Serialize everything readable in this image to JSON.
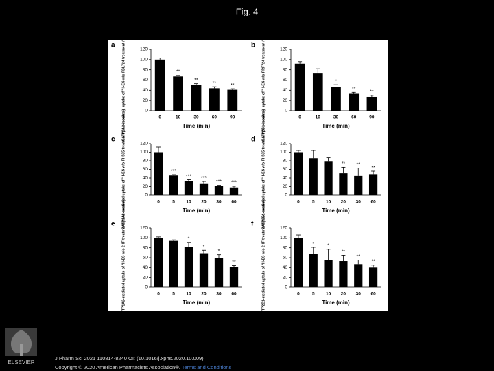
{
  "header": {
    "title": "Fig. 4"
  },
  "footer": {
    "publisher": "ELSEVIER",
    "citation": "J Pharm Sci 2021 110814-8240 OI: (10.1016/j.xphs.2020.10.009)",
    "copyright": "Copyright © 2020 American Pharmacists Association®.",
    "link": "Terms and Conditions"
  },
  "chart_data": [
    {
      "type": "bar",
      "label": "a",
      "ylabel": "OATP1A2-mediated uptake of ³H-ES w/o FBL724 treatment (% of control)",
      "xlabel": "Time (min)",
      "categories": [
        "0",
        "10",
        "30",
        "60",
        "90"
      ],
      "values": [
        100,
        67,
        50,
        44,
        41
      ],
      "errors": [
        3,
        2,
        3,
        3,
        2
      ],
      "sig": [
        null,
        "**",
        "**",
        "**",
        "**"
      ],
      "color": "#000000",
      "ylim": [
        0,
        120
      ],
      "yticks": [
        0,
        20,
        40,
        60,
        80,
        100,
        120
      ]
    },
    {
      "type": "bar",
      "label": "b",
      "ylabel": "OATP2B1-mediated uptake of ³H-ES w/o PRF724 treatment (% of control)",
      "xlabel": "Time (min)",
      "categories": [
        "0",
        "10",
        "30",
        "60",
        "90"
      ],
      "values": [
        92,
        74,
        47,
        33,
        27
      ],
      "errors": [
        4,
        8,
        4,
        3,
        3
      ],
      "sig": [
        null,
        null,
        "*",
        "**",
        "**"
      ],
      "color": "#000000",
      "ylim": [
        0,
        120
      ],
      "yticks": [
        0,
        20,
        40,
        60,
        80,
        100,
        120
      ]
    },
    {
      "type": "bar",
      "label": "c",
      "ylabel": "OATP1A2-mediated uptake of ³H-ES w/o FH535 treatment (% of control)",
      "xlabel": "Time (min)",
      "categories": [
        "0",
        "5",
        "10",
        "20",
        "30",
        "60"
      ],
      "values": [
        100,
        46,
        33,
        26,
        21,
        18
      ],
      "errors": [
        12,
        2,
        3,
        6,
        2,
        3
      ],
      "sig": [
        null,
        "***",
        "***",
        "***",
        "***",
        "***"
      ],
      "color": "#000000",
      "ylim": [
        0,
        120
      ],
      "yticks": [
        0,
        20,
        40,
        60,
        80,
        100,
        120
      ]
    },
    {
      "type": "bar",
      "label": "d",
      "ylabel": "OATP2B1-mediated uptake of ³H-ES w/o FH535 treatment (% of control)",
      "xlabel": "Time (min)",
      "categories": [
        "0",
        "5",
        "10",
        "20",
        "30",
        "60"
      ],
      "values": [
        100,
        86,
        78,
        51,
        45,
        49
      ],
      "errors": [
        4,
        18,
        9,
        14,
        18,
        7
      ],
      "sig": [
        null,
        null,
        null,
        "**",
        "**",
        "**"
      ],
      "color": "#000000",
      "ylim": [
        0,
        120
      ],
      "yticks": [
        0,
        20,
        40,
        60,
        80,
        100,
        120
      ]
    },
    {
      "type": "bar",
      "label": "e",
      "ylabel": "OATP1A2-mediated uptake of ³H-ES w/o 2HF treatment (% of control)",
      "xlabel": "Time (min)",
      "categories": [
        "0",
        "5",
        "10",
        "20",
        "30",
        "60"
      ],
      "values": [
        100,
        94,
        81,
        69,
        60,
        41
      ],
      "errors": [
        2,
        2,
        10,
        6,
        6,
        3
      ],
      "sig": [
        null,
        null,
        "*",
        "*",
        "*",
        "**"
      ],
      "color": "#000000",
      "ylim": [
        0,
        120
      ],
      "yticks": [
        0,
        20,
        40,
        60,
        80,
        100,
        120
      ]
    },
    {
      "type": "bar",
      "label": "f",
      "ylabel": "OATP2B1-mediated uptake of ³H-ES w/o 2HF treatment (% of control)",
      "xlabel": "Time (min)",
      "categories": [
        "0",
        "5",
        "10",
        "20",
        "30",
        "60"
      ],
      "values": [
        100,
        67,
        55,
        53,
        47,
        40
      ],
      "errors": [
        6,
        14,
        22,
        12,
        8,
        5
      ],
      "sig": [
        null,
        "*",
        "*",
        "**",
        "**",
        "**"
      ],
      "color": "#000000",
      "ylim": [
        0,
        120
      ],
      "yticks": [
        0,
        20,
        40,
        60,
        80,
        100,
        120
      ]
    }
  ]
}
